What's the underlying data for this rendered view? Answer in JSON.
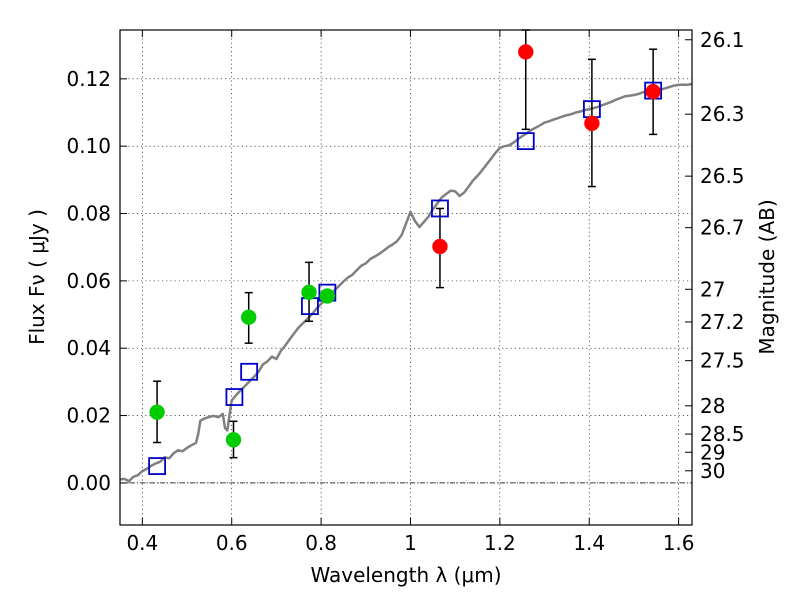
{
  "chart_data": {
    "type": "scatter",
    "title": "",
    "xlabel": "Wavelength  λ (μm)",
    "ylabel": "Flux  Fν  ( μJy )",
    "y2label": "Magnitude (AB)",
    "xlim": [
      0.35,
      1.63
    ],
    "ylim": [
      -0.0125,
      0.1345
    ],
    "x_ticks": [
      0.4,
      0.6,
      0.8,
      1.0,
      1.2,
      1.4,
      1.6
    ],
    "x_tick_labels": [
      "0.4",
      "0.6",
      "0.8",
      "1",
      "1.2",
      "1.4",
      "1.6"
    ],
    "y_ticks": [
      0.0,
      0.02,
      0.04,
      0.06,
      0.08,
      0.1,
      0.12
    ],
    "y_tick_labels": [
      "0.00",
      "0.02",
      "0.04",
      "0.06",
      "0.08",
      "0.10",
      "0.12"
    ],
    "y2_ticks": [
      {
        "label": "26.1",
        "flux": 0.1316
      },
      {
        "label": "26.3",
        "flux": 0.1095
      },
      {
        "label": "26.5",
        "flux": 0.0911
      },
      {
        "label": "26.7",
        "flux": 0.0758
      },
      {
        "label": "27",
        "flux": 0.0575
      },
      {
        "label": "27.2",
        "flux": 0.0478
      },
      {
        "label": "27.5",
        "flux": 0.0363
      },
      {
        "label": "28",
        "flux": 0.0229
      },
      {
        "label": "28.5",
        "flux": 0.0145
      },
      {
        "label": "29",
        "flux": 0.0091
      },
      {
        "label": "30",
        "flux": 0.0036
      }
    ],
    "grid": true,
    "series": [
      {
        "kind": "model_line",
        "color": "#808080",
        "points": [
          [
            0.35,
            0.001
          ],
          [
            0.36,
            0.0012
          ],
          [
            0.37,
            0.0005
          ],
          [
            0.38,
            0.0018
          ],
          [
            0.39,
            0.0023
          ],
          [
            0.4,
            0.0035
          ],
          [
            0.41,
            0.0042
          ],
          [
            0.42,
            0.0051
          ],
          [
            0.43,
            0.0058
          ],
          [
            0.44,
            0.0063
          ],
          [
            0.45,
            0.0076
          ],
          [
            0.46,
            0.0073
          ],
          [
            0.47,
            0.0088
          ],
          [
            0.48,
            0.0097
          ],
          [
            0.49,
            0.0094
          ],
          [
            0.5,
            0.0104
          ],
          [
            0.51,
            0.0112
          ],
          [
            0.52,
            0.0119
          ],
          [
            0.525,
            0.0145
          ],
          [
            0.53,
            0.0185
          ],
          [
            0.54,
            0.0192
          ],
          [
            0.55,
            0.0196
          ],
          [
            0.56,
            0.0199
          ],
          [
            0.57,
            0.0195
          ],
          [
            0.58,
            0.0205
          ],
          [
            0.585,
            0.0163
          ],
          [
            0.59,
            0.0156
          ],
          [
            0.6,
            0.0245
          ],
          [
            0.61,
            0.0261
          ],
          [
            0.62,
            0.0275
          ],
          [
            0.63,
            0.0288
          ],
          [
            0.64,
            0.0302
          ],
          [
            0.65,
            0.0315
          ],
          [
            0.66,
            0.033
          ],
          [
            0.67,
            0.0352
          ],
          [
            0.68,
            0.0361
          ],
          [
            0.69,
            0.0375
          ],
          [
            0.7,
            0.0368
          ],
          [
            0.71,
            0.0392
          ],
          [
            0.72,
            0.0408
          ],
          [
            0.73,
            0.0427
          ],
          [
            0.74,
            0.0445
          ],
          [
            0.75,
            0.0462
          ],
          [
            0.76,
            0.0475
          ],
          [
            0.77,
            0.0488
          ],
          [
            0.78,
            0.0502
          ],
          [
            0.79,
            0.0518
          ],
          [
            0.8,
            0.0532
          ],
          [
            0.81,
            0.0545
          ],
          [
            0.82,
            0.0558
          ],
          [
            0.83,
            0.0572
          ],
          [
            0.84,
            0.0585
          ],
          [
            0.85,
            0.0598
          ],
          [
            0.86,
            0.061
          ],
          [
            0.87,
            0.0618
          ],
          [
            0.88,
            0.0632
          ],
          [
            0.89,
            0.0645
          ],
          [
            0.9,
            0.0652
          ],
          [
            0.91,
            0.0665
          ],
          [
            0.92,
            0.0672
          ],
          [
            0.93,
            0.068
          ],
          [
            0.94,
            0.069
          ],
          [
            0.95,
            0.07
          ],
          [
            0.96,
            0.0708
          ],
          [
            0.97,
            0.0718
          ],
          [
            0.98,
            0.0735
          ],
          [
            0.99,
            0.077
          ],
          [
            1.0,
            0.0805
          ],
          [
            1.01,
            0.0778
          ],
          [
            1.02,
            0.076
          ],
          [
            1.03,
            0.0775
          ],
          [
            1.04,
            0.079
          ],
          [
            1.05,
            0.0812
          ],
          [
            1.06,
            0.083
          ],
          [
            1.07,
            0.0848
          ],
          [
            1.08,
            0.0858
          ],
          [
            1.09,
            0.0868
          ],
          [
            1.1,
            0.0866
          ],
          [
            1.11,
            0.0852
          ],
          [
            1.12,
            0.0862
          ],
          [
            1.13,
            0.088
          ],
          [
            1.14,
            0.0898
          ],
          [
            1.15,
            0.0912
          ],
          [
            1.16,
            0.0928
          ],
          [
            1.17,
            0.0945
          ],
          [
            1.18,
            0.0962
          ],
          [
            1.19,
            0.098
          ],
          [
            1.2,
            0.0995
          ],
          [
            1.21,
            0.1
          ],
          [
            1.22,
            0.1002
          ],
          [
            1.23,
            0.101
          ],
          [
            1.24,
            0.102
          ],
          [
            1.25,
            0.103
          ],
          [
            1.26,
            0.1038
          ],
          [
            1.27,
            0.1048
          ],
          [
            1.28,
            0.1055
          ],
          [
            1.29,
            0.1062
          ],
          [
            1.3,
            0.107
          ],
          [
            1.31,
            0.1074
          ],
          [
            1.32,
            0.1079
          ],
          [
            1.33,
            0.1083
          ],
          [
            1.34,
            0.1088
          ],
          [
            1.35,
            0.1092
          ],
          [
            1.36,
            0.1095
          ],
          [
            1.37,
            0.11
          ],
          [
            1.38,
            0.1103
          ],
          [
            1.39,
            0.1107
          ],
          [
            1.4,
            0.111
          ],
          [
            1.41,
            0.1113
          ],
          [
            1.42,
            0.1117
          ],
          [
            1.43,
            0.1122
          ],
          [
            1.44,
            0.1127
          ],
          [
            1.45,
            0.1132
          ],
          [
            1.46,
            0.1138
          ],
          [
            1.47,
            0.1143
          ],
          [
            1.48,
            0.1148
          ],
          [
            1.49,
            0.115
          ],
          [
            1.5,
            0.1152
          ],
          [
            1.51,
            0.1155
          ],
          [
            1.52,
            0.116
          ],
          [
            1.53,
            0.1163
          ],
          [
            1.54,
            0.1166
          ],
          [
            1.55,
            0.117
          ],
          [
            1.56,
            0.1168
          ],
          [
            1.57,
            0.1172
          ],
          [
            1.58,
            0.1176
          ],
          [
            1.59,
            0.118
          ],
          [
            1.6,
            0.1182
          ],
          [
            1.61,
            0.1183
          ],
          [
            1.62,
            0.1182
          ],
          [
            1.63,
            0.1185
          ]
        ]
      },
      {
        "kind": "model_photometry",
        "marker": "open-square",
        "color": "#0000cc",
        "points": [
          {
            "x": 0.433,
            "y": 0.005
          },
          {
            "x": 0.606,
            "y": 0.0255
          },
          {
            "x": 0.639,
            "y": 0.033
          },
          {
            "x": 0.775,
            "y": 0.0525
          },
          {
            "x": 0.814,
            "y": 0.0565
          },
          {
            "x": 1.066,
            "y": 0.0815
          },
          {
            "x": 1.258,
            "y": 0.1015
          },
          {
            "x": 1.406,
            "y": 0.111
          },
          {
            "x": 1.543,
            "y": 0.1165
          }
        ]
      },
      {
        "kind": "observed_optical",
        "marker": "filled-circle",
        "color": "#00cc00",
        "points": [
          {
            "x": 0.433,
            "y": 0.021,
            "lo": 0.012,
            "hi": 0.0302
          },
          {
            "x": 0.604,
            "y": 0.0128,
            "lo": 0.0075,
            "hi": 0.0183
          },
          {
            "x": 0.638,
            "y": 0.0492,
            "lo": 0.0415,
            "hi": 0.0565
          },
          {
            "x": 0.773,
            "y": 0.0566,
            "lo": 0.048,
            "hi": 0.0655
          },
          {
            "x": 0.814,
            "y": 0.0555,
            "lo": 0.0555,
            "hi": 0.0555
          }
        ]
      },
      {
        "kind": "observed_nir",
        "marker": "filled-circle",
        "color": "#ff0000",
        "points": [
          {
            "x": 1.066,
            "y": 0.0702,
            "lo": 0.058,
            "hi": 0.0815
          },
          {
            "x": 1.258,
            "y": 0.128,
            "lo": 0.105,
            "hi": 0.1345
          },
          {
            "x": 1.406,
            "y": 0.1068,
            "lo": 0.088,
            "hi": 0.1258
          },
          {
            "x": 1.543,
            "y": 0.1162,
            "lo": 0.1035,
            "hi": 0.1288
          }
        ]
      }
    ]
  }
}
